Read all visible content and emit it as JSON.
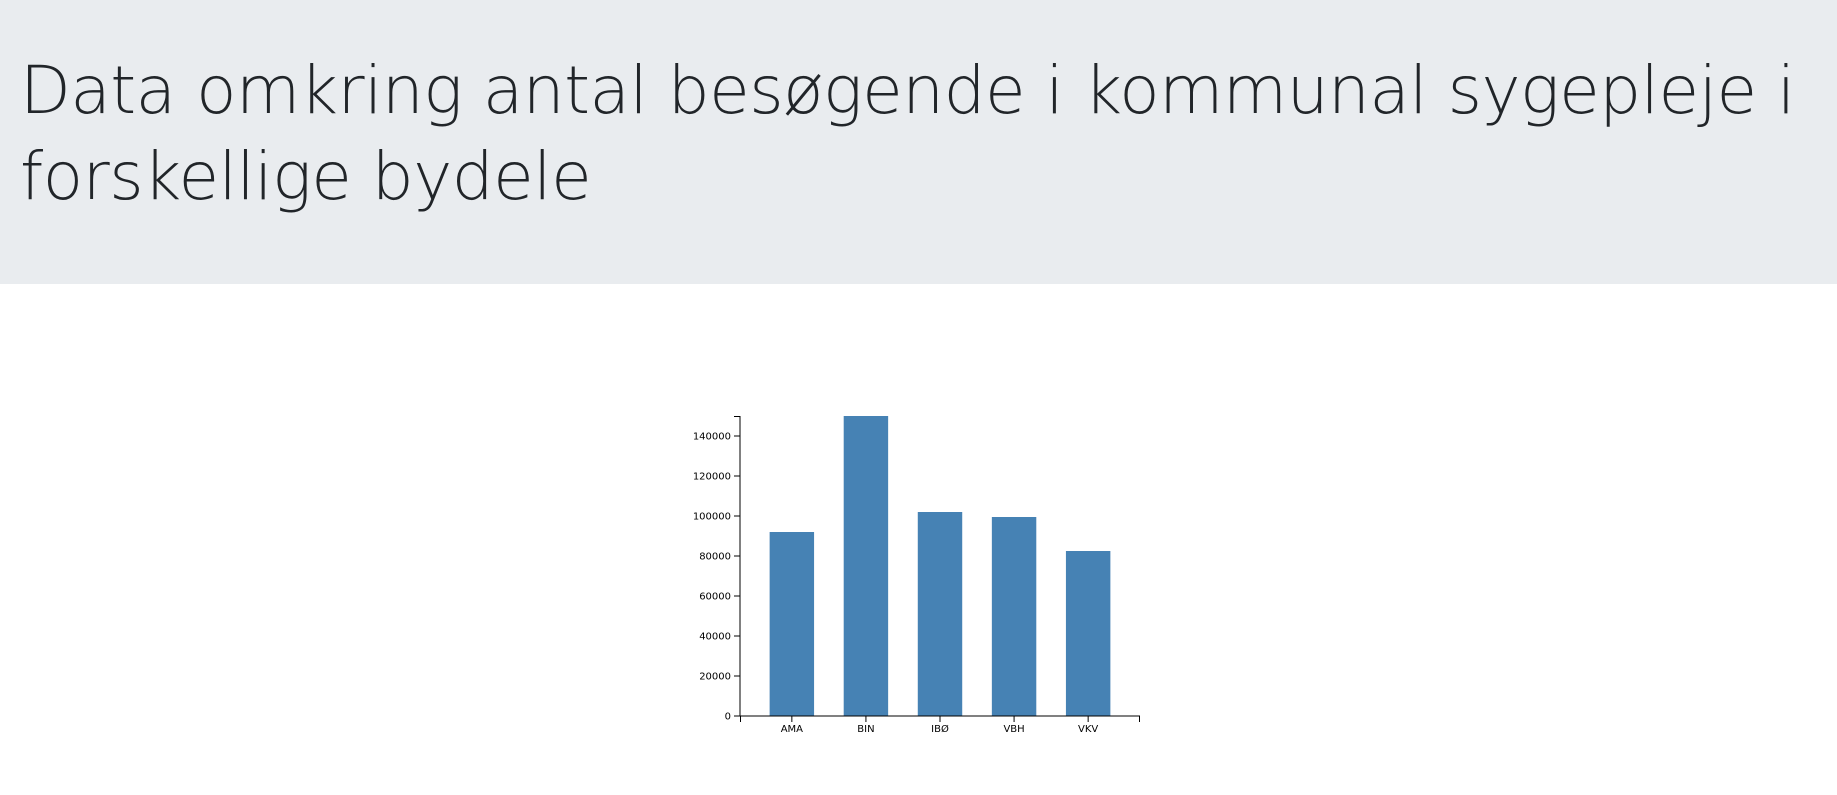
{
  "header": {
    "title": "Data omkring antal besøgende i kommunal sygepleje i forskellige bydele"
  },
  "chart_data": {
    "type": "bar",
    "title": "",
    "xlabel": "",
    "ylabel": "",
    "categories": [
      "AMA",
      "BIN",
      "IBØ",
      "VBH",
      "VKV"
    ],
    "values": [
      92000,
      150000,
      102000,
      99500,
      82500
    ],
    "ylim": [
      0,
      150000
    ],
    "yticks": [
      0,
      20000,
      40000,
      60000,
      80000,
      100000,
      120000,
      140000
    ],
    "bar_color": "#4682b4",
    "grid": false,
    "legend": "none"
  }
}
